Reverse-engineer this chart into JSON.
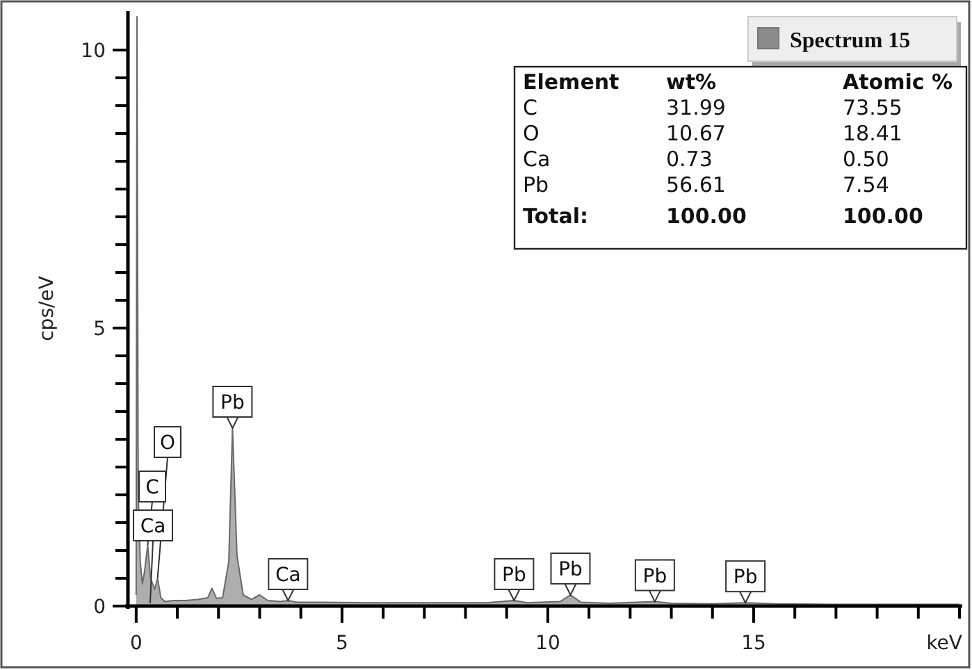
{
  "chart_data": {
    "type": "area",
    "ylabel": "cps/eV",
    "xlabel": "keV",
    "xlim": [
      -0.2,
      20
    ],
    "ylim": [
      0,
      10.7
    ],
    "xticks": [
      0,
      {
        "value": 1,
        "label": null
      },
      {
        "value": 2,
        "label": null
      },
      {
        "value": 3,
        "label": null
      },
      {
        "value": 4,
        "label": null
      },
      5,
      {
        "value": 6,
        "label": null
      },
      {
        "value": 7,
        "label": null
      },
      {
        "value": 8,
        "label": null
      },
      {
        "value": 9,
        "label": null
      },
      10,
      {
        "value": 11,
        "label": null
      },
      {
        "value": 12,
        "label": null
      },
      {
        "value": 13,
        "label": null
      },
      {
        "value": 14,
        "label": null
      },
      15,
      {
        "value": 16,
        "label": null
      },
      {
        "value": 17,
        "label": null
      },
      {
        "value": 18,
        "label": null
      },
      {
        "value": 19,
        "label": null
      },
      {
        "value": 20,
        "label": null
      }
    ],
    "yticks": [
      0,
      {
        "value": 0.5,
        "label": null
      },
      {
        "value": 1,
        "label": null
      },
      {
        "value": 1.5,
        "label": null
      },
      {
        "value": 2,
        "label": null
      },
      {
        "value": 2.5,
        "label": null
      },
      {
        "value": 3,
        "label": null
      },
      {
        "value": 3.5,
        "label": null
      },
      {
        "value": 4,
        "label": null
      },
      {
        "value": 4.5,
        "label": null
      },
      5,
      {
        "value": 5.5,
        "label": null
      },
      {
        "value": 6,
        "label": null
      },
      {
        "value": 6.5,
        "label": null
      },
      {
        "value": 7,
        "label": null
      },
      {
        "value": 7.5,
        "label": null
      },
      {
        "value": 8,
        "label": null
      },
      {
        "value": 8.5,
        "label": null
      },
      {
        "value": 9,
        "label": null
      },
      {
        "value": 9.5,
        "label": null
      },
      10
    ],
    "grid": false,
    "legend": "top right",
    "series": [
      {
        "name": "Spectrum 15",
        "color": "#8c8c8c",
        "x": [
          0,
          0.02,
          0.05,
          0.1,
          0.15,
          0.2,
          0.28,
          0.35,
          0.45,
          0.52,
          0.6,
          0.7,
          0.9,
          1.2,
          1.5,
          1.74,
          1.84,
          1.95,
          2.1,
          2.25,
          2.34,
          2.45,
          2.6,
          2.8,
          3.0,
          3.2,
          3.5,
          3.69,
          3.9,
          4.5,
          5.5,
          6.5,
          7.5,
          8.5,
          9.18,
          9.5,
          10.3,
          10.55,
          10.8,
          11.5,
          12.6,
          13.0,
          14.0,
          14.8,
          15.5,
          17,
          18.5,
          20
        ],
        "values": [
          0.2,
          10.6,
          2.0,
          0.8,
          0.4,
          0.6,
          1.1,
          0.5,
          0.3,
          0.5,
          0.15,
          0.08,
          0.1,
          0.1,
          0.12,
          0.15,
          0.32,
          0.14,
          0.15,
          0.8,
          3.2,
          0.9,
          0.2,
          0.12,
          0.2,
          0.1,
          0.08,
          0.1,
          0.07,
          0.07,
          0.06,
          0.06,
          0.06,
          0.06,
          0.1,
          0.06,
          0.08,
          0.2,
          0.07,
          0.05,
          0.08,
          0.05,
          0.04,
          0.06,
          0.04,
          0.03,
          0.03,
          0.03
        ]
      }
    ],
    "annotations": [
      {
        "text": "Pb",
        "x": 2.34,
        "y": 3.2
      },
      {
        "text": "Ca",
        "x": 3.69,
        "y": 0.1
      },
      {
        "text": "Pb",
        "x": 9.18,
        "y": 0.1
      },
      {
        "text": "Pb",
        "x": 10.55,
        "y": 0.2
      },
      {
        "text": "Pb",
        "x": 12.6,
        "y": 0.08
      },
      {
        "text": "Pb",
        "x": 14.8,
        "y": 0.06
      },
      {
        "text": "Ca",
        "x": 0.34,
        "y": 0.05
      },
      {
        "text": "C",
        "x": 0.28,
        "y": 1.1
      },
      {
        "text": "O",
        "x": 0.52,
        "y": 0.5
      },
      "Element",
      "wt%",
      "Atomic %",
      "C",
      "31.99",
      "73.55",
      "O",
      "10.67",
      "18.41",
      "Ca",
      "0.73",
      "0.50",
      "Pb",
      "56.61",
      "7.54",
      "Total:",
      "100.00",
      "100.00"
    ]
  }
}
